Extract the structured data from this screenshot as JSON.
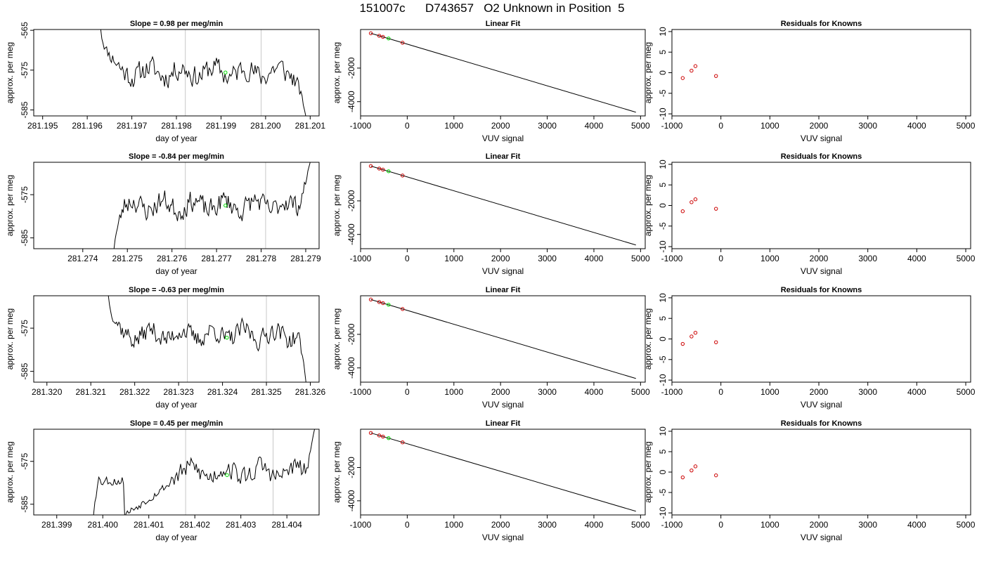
{
  "page_title": "151007c      D743657   O2 Unknown in Position  5",
  "colors": {
    "trace": "#000000",
    "known_points": "#cc0000",
    "unknown_point": "#00dd00",
    "marker_lines": "#c8c8c8"
  },
  "chart_data": [
    {
      "type": "line",
      "title": "Slope =  0.98  per meg/min",
      "xlabel": "day of year",
      "ylabel": "approx. per meg",
      "xlim": [
        281.1948,
        281.2012
      ],
      "ylim": [
        -586.5,
        -564.8
      ],
      "xticks": [
        281.195,
        281.196,
        281.197,
        281.198,
        281.199,
        281.2,
        281.201
      ],
      "xtick_labels": [
        "281.195",
        "281.196",
        "281.197",
        "281.198",
        "281.199",
        "281.200",
        "281.201"
      ],
      "yticks": [
        -565,
        -575,
        -585
      ],
      "ytick_labels": [
        "-565",
        "-575",
        "-585"
      ],
      "marker_lines": [
        281.1982,
        281.1999
      ],
      "unknown_point": {
        "x": 281.1991,
        "y": -575.6
      },
      "trace": {
        "seed": 11,
        "x_start": 281.1963,
        "x_end": 281.2009,
        "y_start": -564.6,
        "y_end": -586.5,
        "settle_frac": 0.1,
        "tail_frac": 0.07,
        "mean": -575.5,
        "amp": 2.6
      }
    },
    {
      "type": "scatter",
      "title": "Linear Fit",
      "xlabel": "VUV signal",
      "ylabel": "approx. per meg",
      "xlim": [
        -1000,
        5100
      ],
      "ylim": [
        -4850,
        300
      ],
      "xticks": [
        -1000,
        0,
        1000,
        2000,
        3000,
        4000,
        5000
      ],
      "xtick_labels": [
        "-1000",
        "0",
        "1000",
        "2000",
        "3000",
        "4000",
        "5000"
      ],
      "yticks": [
        -2000,
        -4000
      ],
      "ytick_labels": [
        "-2000",
        "-4000"
      ],
      "fit_line": {
        "x": [
          -780,
          4900
        ],
        "y": [
          75,
          -4630
        ]
      },
      "known_points": {
        "x": [
          -780,
          -600,
          -520,
          -100
        ],
        "y": [
          75,
          -75,
          -140,
          -490
        ]
      },
      "unknown_point": {
        "x": -400,
        "y": -235
      }
    },
    {
      "type": "scatter",
      "title": "Residuals for Knowns",
      "xlabel": "VUV signal",
      "ylabel": "approx. per meg",
      "xlim": [
        -1000,
        5100
      ],
      "ylim": [
        -10.5,
        10.5
      ],
      "xticks": [
        -1000,
        0,
        1000,
        2000,
        3000,
        4000,
        5000
      ],
      "xtick_labels": [
        "-1000",
        "0",
        "1000",
        "2000",
        "3000",
        "4000",
        "5000"
      ],
      "yticks": [
        -10,
        -5,
        0,
        5,
        10
      ],
      "ytick_labels": [
        "-10",
        "-5",
        "0",
        "5",
        "10"
      ],
      "known_points": {
        "x": [
          -780,
          -600,
          -520,
          -100
        ],
        "y": [
          -1.3,
          0.5,
          1.6,
          -0.8
        ]
      }
    },
    {
      "type": "line",
      "title": "Slope =  -0.84  per meg/min",
      "xlabel": "day of year",
      "ylabel": "approx. per meg",
      "xlim": [
        281.2729,
        281.2793
      ],
      "ylim": [
        -587.5,
        -567.5
      ],
      "xticks": [
        281.274,
        281.275,
        281.276,
        281.277,
        281.278,
        281.279
      ],
      "xtick_labels": [
        "281.274",
        "281.275",
        "281.276",
        "281.277",
        "281.278",
        "281.279"
      ],
      "yticks": [
        -575,
        -585
      ],
      "ytick_labels": [
        "-575",
        "-585"
      ],
      "marker_lines": [
        281.2763,
        281.2781
      ],
      "unknown_point": {
        "x": 281.2772,
        "y": -577.5
      },
      "trace": {
        "seed": 23,
        "x_start": 281.2747,
        "x_end": 281.2791,
        "y_start": -587.5,
        "y_end": -567.5,
        "settle_frac": 0.05,
        "tail_frac": 0.08,
        "mean": -577.5,
        "amp": 2.3
      }
    },
    {
      "type": "scatter",
      "title": "Linear Fit",
      "xlabel": "VUV signal",
      "ylabel": "approx. per meg",
      "xlim": [
        -1000,
        5100
      ],
      "ylim": [
        -4850,
        300
      ],
      "xticks": [
        -1000,
        0,
        1000,
        2000,
        3000,
        4000,
        5000
      ],
      "xtick_labels": [
        "-1000",
        "0",
        "1000",
        "2000",
        "3000",
        "4000",
        "5000"
      ],
      "yticks": [
        -2000,
        -4000
      ],
      "ytick_labels": [
        "-2000",
        "-4000"
      ],
      "fit_line": {
        "x": [
          -780,
          4900
        ],
        "y": [
          75,
          -4630
        ]
      },
      "known_points": {
        "x": [
          -780,
          -600,
          -520,
          -100
        ],
        "y": [
          75,
          -75,
          -140,
          -490
        ]
      },
      "unknown_point": {
        "x": -400,
        "y": -235
      }
    },
    {
      "type": "scatter",
      "title": "Residuals for Knowns",
      "xlabel": "VUV signal",
      "ylabel": "approx. per meg",
      "xlim": [
        -1000,
        5100
      ],
      "ylim": [
        -10.5,
        10.5
      ],
      "xticks": [
        -1000,
        0,
        1000,
        2000,
        3000,
        4000,
        5000
      ],
      "xtick_labels": [
        "-1000",
        "0",
        "1000",
        "2000",
        "3000",
        "4000",
        "5000"
      ],
      "yticks": [
        -10,
        -5,
        0,
        5,
        10
      ],
      "ytick_labels": [
        "-10",
        "-5",
        "0",
        "5",
        "10"
      ],
      "known_points": {
        "x": [
          -780,
          -600,
          -520,
          -100
        ],
        "y": [
          -1.4,
          0.8,
          1.5,
          -0.8
        ]
      }
    },
    {
      "type": "line",
      "title": "Slope =  -0.63  per meg/min",
      "xlabel": "day of year",
      "ylabel": "approx. per meg",
      "xlim": [
        281.3197,
        281.3262
      ],
      "ylim": [
        -587.5,
        -567.5
      ],
      "xticks": [
        281.32,
        281.321,
        281.322,
        281.323,
        281.324,
        281.325,
        281.326
      ],
      "xtick_labels": [
        "281.320",
        "281.321",
        "281.322",
        "281.323",
        "281.324",
        "281.325",
        "281.326"
      ],
      "yticks": [
        -575,
        -585
      ],
      "ytick_labels": [
        "-575",
        "-585"
      ],
      "marker_lines": [
        281.3232,
        281.325
      ],
      "unknown_point": {
        "x": 281.3241,
        "y": -577.2
      },
      "trace": {
        "seed": 37,
        "x_start": 281.3214,
        "x_end": 281.3259,
        "y_start": -567.5,
        "y_end": -587.5,
        "settle_frac": 0.07,
        "tail_frac": 0.05,
        "mean": -576.5,
        "amp": 2.1
      }
    },
    {
      "type": "scatter",
      "title": "Linear Fit",
      "xlabel": "VUV signal",
      "ylabel": "approx. per meg",
      "xlim": [
        -1000,
        5100
      ],
      "ylim": [
        -4850,
        300
      ],
      "xticks": [
        -1000,
        0,
        1000,
        2000,
        3000,
        4000,
        5000
      ],
      "xtick_labels": [
        "-1000",
        "0",
        "1000",
        "2000",
        "3000",
        "4000",
        "5000"
      ],
      "yticks": [
        -2000,
        -4000
      ],
      "ytick_labels": [
        "-2000",
        "-4000"
      ],
      "fit_line": {
        "x": [
          -780,
          4900
        ],
        "y": [
          75,
          -4630
        ]
      },
      "known_points": {
        "x": [
          -780,
          -600,
          -520,
          -100
        ],
        "y": [
          75,
          -75,
          -140,
          -490
        ]
      },
      "unknown_point": {
        "x": -400,
        "y": -235
      }
    },
    {
      "type": "scatter",
      "title": "Residuals for Knowns",
      "xlabel": "VUV signal",
      "ylabel": "approx. per meg",
      "xlim": [
        -1000,
        5100
      ],
      "ylim": [
        -10.5,
        10.5
      ],
      "xticks": [
        -1000,
        0,
        1000,
        2000,
        3000,
        4000,
        5000
      ],
      "xtick_labels": [
        "-1000",
        "0",
        "1000",
        "2000",
        "3000",
        "4000",
        "5000"
      ],
      "yticks": [
        -10,
        -5,
        0,
        5,
        10
      ],
      "ytick_labels": [
        "-10",
        "-5",
        "0",
        "5",
        "10"
      ],
      "known_points": {
        "x": [
          -780,
          -600,
          -520,
          -100
        ],
        "y": [
          -1.2,
          0.6,
          1.5,
          -0.8
        ]
      }
    },
    {
      "type": "line",
      "title": "Slope =  0.45  per meg/min",
      "xlabel": "day of year",
      "ylabel": "approx. per meg",
      "xlim": [
        281.3985,
        281.4047
      ],
      "ylim": [
        -587.5,
        -567.5
      ],
      "xticks": [
        281.399,
        281.4,
        281.401,
        281.402,
        281.403,
        281.404
      ],
      "xtick_labels": [
        "281.399",
        "281.400",
        "281.401",
        "281.402",
        "281.403",
        "281.404"
      ],
      "yticks": [
        -575,
        -585
      ],
      "ytick_labels": [
        "-575",
        "-585"
      ],
      "marker_lines": [
        281.4018,
        281.4037
      ],
      "unknown_point": {
        "x": 281.4027,
        "y": -578.2
      },
      "trace": {
        "seed": 53,
        "x_start": 281.3998,
        "x_end": 281.4046,
        "y_start": -587.5,
        "y_end": -567.5,
        "settle_frac": 0.03,
        "tail_frac": 0.05,
        "mean": -577.5,
        "amp": 2.2,
        "step": {
          "at_frac": 0.14,
          "before": -579.5,
          "drop": -587.5,
          "after_start": -587.5,
          "jump_frac": 0.35,
          "jump_to": -572.5
        }
      }
    },
    {
      "type": "scatter",
      "title": "Linear Fit",
      "xlabel": "VUV signal",
      "ylabel": "approx. per meg",
      "xlim": [
        -1000,
        5100
      ],
      "ylim": [
        -4850,
        300
      ],
      "xticks": [
        -1000,
        0,
        1000,
        2000,
        3000,
        4000,
        5000
      ],
      "xtick_labels": [
        "-1000",
        "0",
        "1000",
        "2000",
        "3000",
        "4000",
        "5000"
      ],
      "yticks": [
        -2000,
        -4000
      ],
      "ytick_labels": [
        "-2000",
        "-4000"
      ],
      "fit_line": {
        "x": [
          -780,
          4900
        ],
        "y": [
          75,
          -4630
        ]
      },
      "known_points": {
        "x": [
          -780,
          -600,
          -520,
          -100
        ],
        "y": [
          75,
          -75,
          -140,
          -490
        ]
      },
      "unknown_point": {
        "x": -400,
        "y": -235
      }
    },
    {
      "type": "scatter",
      "title": "Residuals for Knowns",
      "xlabel": "VUV signal",
      "ylabel": "approx. per meg",
      "xlim": [
        -1000,
        5100
      ],
      "ylim": [
        -10.5,
        10.5
      ],
      "xticks": [
        -1000,
        0,
        1000,
        2000,
        3000,
        4000,
        5000
      ],
      "xtick_labels": [
        "-1000",
        "0",
        "1000",
        "2000",
        "3000",
        "4000",
        "5000"
      ],
      "yticks": [
        -10,
        -5,
        0,
        5,
        10
      ],
      "ytick_labels": [
        "-10",
        "-5",
        "0",
        "5",
        "10"
      ],
      "known_points": {
        "x": [
          -780,
          -600,
          -520,
          -100
        ],
        "y": [
          -1.3,
          0.4,
          1.4,
          -0.8
        ]
      }
    }
  ]
}
